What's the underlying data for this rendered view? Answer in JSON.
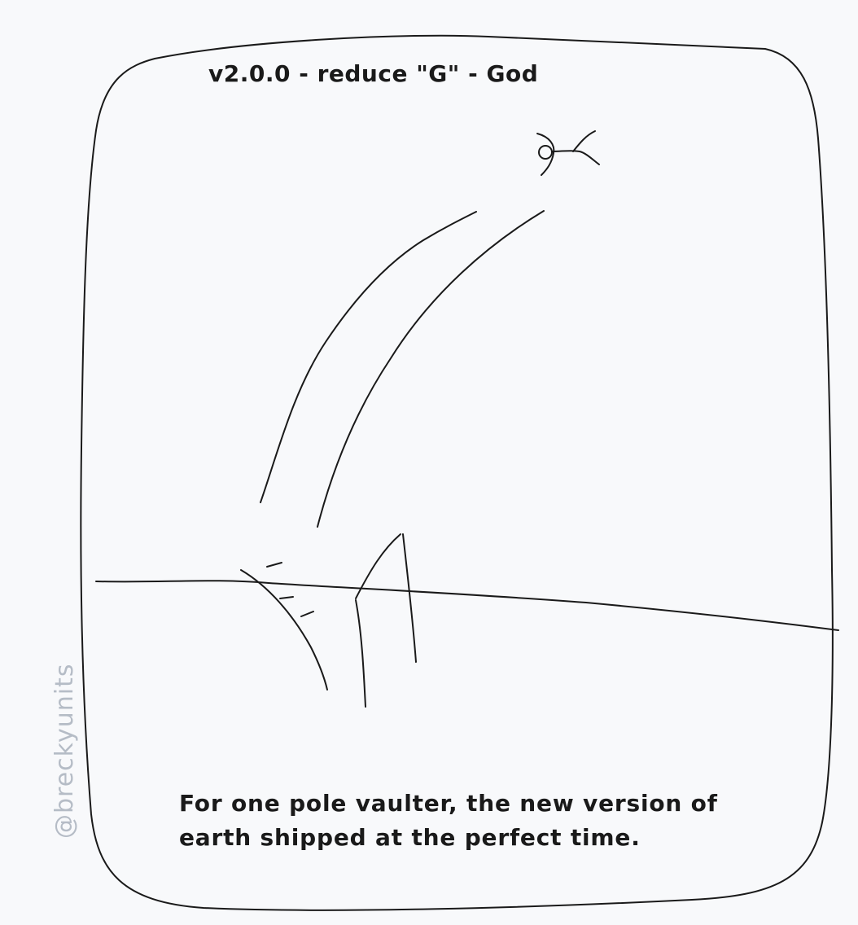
{
  "panel": {
    "title": "v2.0.0 - reduce \"G\" - God",
    "caption": "For one pole vaulter, the new version of earth shipped at the perfect time."
  },
  "signature": {
    "text": "@breckyunits"
  },
  "colors": {
    "background": "#f8f9fb",
    "ink": "#1a1a1a",
    "signature": "#b5bcc6"
  }
}
